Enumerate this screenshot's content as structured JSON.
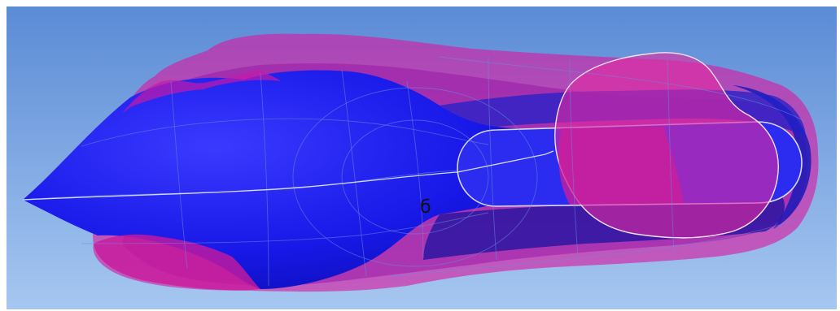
{
  "figure": {
    "label": "б",
    "colors": {
      "background_top": "#5f8fd8",
      "background_bottom": "#a3c4ee",
      "body_blue": "#1a1aee",
      "envelope_magenta": "#d81aa0",
      "edge_highlight": "#f0d8f0"
    }
  }
}
